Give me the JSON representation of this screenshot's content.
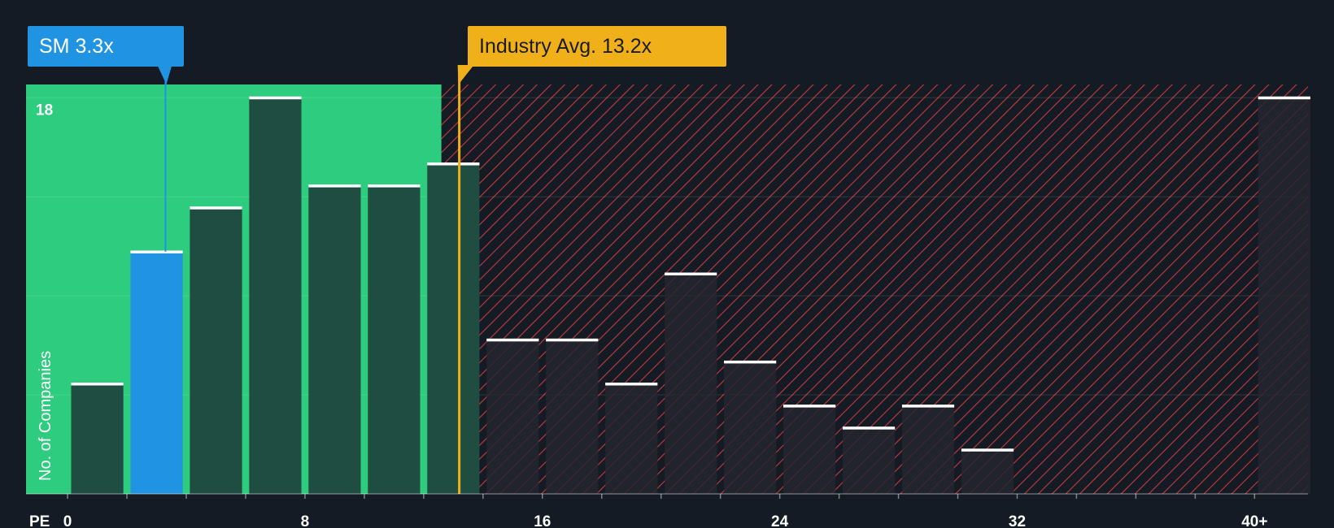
{
  "colors": {
    "background": "#151b24",
    "company_zone": "#2ecc7e",
    "company_bar": "#1f4d42",
    "highlight_bar": "#2193e3",
    "overvalued_hatch": "#c53a3c",
    "overvalued_bar": "#24262f",
    "industry_line": "#f0b01a",
    "bar_cap": "#ffffff"
  },
  "labels": {
    "company": "SM 3.3x",
    "industry": "Industry Avg. 13.2x"
  },
  "chart_data": {
    "type": "bar",
    "title": "",
    "xlabel": "PE",
    "ylabel": "No. of Companies",
    "x_ticks": [
      "0",
      "8",
      "16",
      "24",
      "32",
      "40+"
    ],
    "x_tick_values": [
      0,
      8,
      16,
      24,
      32,
      40
    ],
    "y_ticks": [
      "18"
    ],
    "y_tick_values": [
      18
    ],
    "ylim": [
      0,
      18.6
    ],
    "xlim": [
      -1.4,
      41.8
    ],
    "bin_width": 2,
    "bins": [
      {
        "start": 0,
        "count": 5
      },
      {
        "start": 2,
        "count": 11,
        "highlight": true
      },
      {
        "start": 4,
        "count": 13
      },
      {
        "start": 6,
        "count": 18
      },
      {
        "start": 8,
        "count": 14
      },
      {
        "start": 10,
        "count": 14
      },
      {
        "start": 12,
        "count": 15
      },
      {
        "start": 14,
        "count": 7
      },
      {
        "start": 16,
        "count": 7
      },
      {
        "start": 18,
        "count": 5
      },
      {
        "start": 20,
        "count": 10
      },
      {
        "start": 22,
        "count": 6
      },
      {
        "start": 24,
        "count": 4
      },
      {
        "start": 26,
        "count": 3
      },
      {
        "start": 28,
        "count": 4
      },
      {
        "start": 30,
        "count": 2
      },
      {
        "start": 32,
        "count": 0
      },
      {
        "start": 34,
        "count": 0
      },
      {
        "start": 36,
        "count": 0
      },
      {
        "start": 38,
        "count": 0
      },
      {
        "start": 40,
        "count": 18
      }
    ],
    "company_pe": 3.3,
    "industry_avg_pe": 13.2,
    "fair_zone_end": 12.6
  }
}
